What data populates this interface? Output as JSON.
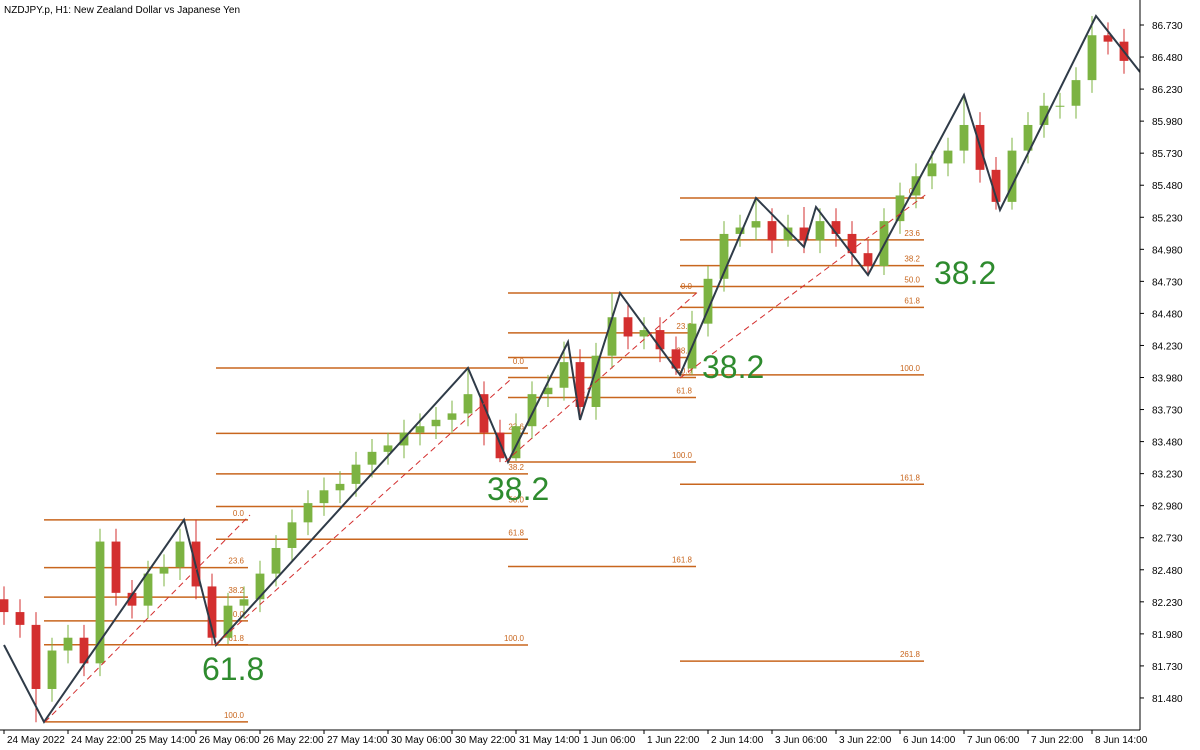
{
  "chart_data": {
    "type": "candlestick",
    "title": "NZDJPY.p, H1:  New Zealand Dollar vs Japanese Yen",
    "x": [
      0,
      4,
      8,
      12,
      16,
      20,
      24,
      28,
      32,
      36,
      40,
      44,
      48,
      52,
      56,
      60,
      64,
      68,
      72,
      76,
      80,
      84,
      88,
      92,
      96,
      100,
      104,
      108,
      112,
      116,
      120,
      124,
      128,
      132,
      136,
      140,
      144,
      148,
      152,
      156,
      160,
      164,
      168,
      172,
      176,
      180,
      184,
      188,
      192,
      196,
      200,
      204,
      208,
      212,
      216,
      220,
      224,
      228,
      232,
      236,
      240,
      244,
      248,
      252,
      256,
      260,
      264,
      268,
      272,
      276,
      280
    ],
    "open": [
      82.25,
      82.15,
      82.05,
      81.55,
      81.85,
      81.95,
      81.75,
      82.7,
      82.3,
      82.2,
      82.45,
      82.5,
      82.7,
      82.35,
      81.95,
      82.2,
      82.25,
      82.45,
      82.65,
      82.85,
      83.0,
      83.1,
      83.15,
      83.3,
      83.4,
      83.45,
      83.55,
      83.6,
      83.65,
      83.7,
      83.85,
      83.55,
      83.35,
      83.6,
      83.85,
      83.9,
      84.1,
      83.75,
      84.15,
      84.45,
      84.3,
      84.35,
      84.2,
      84.05,
      84.4,
      84.75,
      85.1,
      85.15,
      85.2,
      85.05,
      85.15,
      85.05,
      85.2,
      85.1,
      84.95,
      84.85,
      85.2,
      85.4,
      85.55,
      85.65,
      85.75,
      85.95,
      85.6,
      85.35,
      85.75,
      85.95,
      86.1,
      86.1,
      86.3,
      86.65,
      86.6
    ],
    "high": [
      82.35,
      82.25,
      82.15,
      81.95,
      82.05,
      82.05,
      82.8,
      82.8,
      82.4,
      82.55,
      82.6,
      82.8,
      82.87,
      82.45,
      82.3,
      82.35,
      82.55,
      82.75,
      82.95,
      83.1,
      83.2,
      83.25,
      83.4,
      83.5,
      83.55,
      83.65,
      83.7,
      83.75,
      83.8,
      84.05,
      83.95,
      83.65,
      83.7,
      83.95,
      84.0,
      84.26,
      84.2,
      84.25,
      84.64,
      84.55,
      84.45,
      84.45,
      84.3,
      84.5,
      84.85,
      85.2,
      85.25,
      85.38,
      85.3,
      85.25,
      85.31,
      85.3,
      85.3,
      85.2,
      85.05,
      85.3,
      85.5,
      85.65,
      85.75,
      85.85,
      86.18,
      86.05,
      85.7,
      85.85,
      86.05,
      86.2,
      86.2,
      86.4,
      86.8,
      86.75,
      86.7
    ],
    "low": [
      82.05,
      81.95,
      81.29,
      81.45,
      81.75,
      81.65,
      81.65,
      82.2,
      82.1,
      82.1,
      82.35,
      82.4,
      82.25,
      81.89,
      81.9,
      82.1,
      82.15,
      82.35,
      82.55,
      82.75,
      82.9,
      83.0,
      83.05,
      83.2,
      83.3,
      83.35,
      83.45,
      83.5,
      83.55,
      83.6,
      83.45,
      83.32,
      83.33,
      83.5,
      83.75,
      83.8,
      83.65,
      83.65,
      84.05,
      84.2,
      84.2,
      84.1,
      84.0,
      84.0,
      84.3,
      84.65,
      85.0,
      85.05,
      84.95,
      85.0,
      84.95,
      84.95,
      85.0,
      84.85,
      84.78,
      84.78,
      85.1,
      85.3,
      85.45,
      85.55,
      85.65,
      85.5,
      85.29,
      85.29,
      85.65,
      85.85,
      86.0,
      86.0,
      86.2,
      86.5,
      86.35
    ],
    "close": [
      82.15,
      82.05,
      81.55,
      81.85,
      81.95,
      81.75,
      82.7,
      82.3,
      82.2,
      82.45,
      82.5,
      82.7,
      82.35,
      81.95,
      82.2,
      82.25,
      82.45,
      82.65,
      82.85,
      83.0,
      83.1,
      83.15,
      83.3,
      83.4,
      83.45,
      83.55,
      83.6,
      83.65,
      83.7,
      83.85,
      83.55,
      83.35,
      83.6,
      83.85,
      83.9,
      84.1,
      83.75,
      84.15,
      84.45,
      84.3,
      84.35,
      84.2,
      84.05,
      84.4,
      84.75,
      85.1,
      85.15,
      85.2,
      85.05,
      85.15,
      85.05,
      85.2,
      85.1,
      84.95,
      84.85,
      85.2,
      85.4,
      85.55,
      85.65,
      85.75,
      85.95,
      85.6,
      85.35,
      85.75,
      85.95,
      86.1,
      86.1,
      86.3,
      86.65,
      86.6,
      86.45
    ],
    "up_color": "#7cb342",
    "down_color": "#d32f2f",
    "zigzag": {
      "color": "#2f3b48",
      "x": [
        0,
        10,
        45,
        53,
        116,
        126,
        141,
        144,
        154,
        169,
        188,
        200,
        203,
        216,
        240,
        249,
        273,
        284
      ],
      "values": [
        81.893,
        81.293,
        82.869,
        81.893,
        84.054,
        83.321,
        84.257,
        83.649,
        84.639,
        84.0,
        85.38,
        84.998,
        85.31,
        84.78,
        86.184,
        85.287,
        86.8,
        86.363
      ]
    },
    "fib_color": "#c8661e",
    "fibs": [
      {
        "start": 10,
        "end": 61,
        "levels": [
          {
            "label": "0.0",
            "value": 82.869
          },
          {
            "label": "23.6",
            "value": 82.497
          },
          {
            "label": "38.2",
            "value": 82.267
          },
          {
            "label": "50.0",
            "value": 82.081
          },
          {
            "label": "61.8",
            "value": 81.895
          },
          {
            "label": "100.0",
            "value": 81.293
          }
        ]
      },
      {
        "start": 53,
        "end": 131,
        "levels": [
          {
            "label": "0.0",
            "value": 84.054
          },
          {
            "label": "23.6",
            "value": 83.544
          },
          {
            "label": "38.2",
            "value": 83.228
          },
          {
            "label": "50.0",
            "value": 82.974
          },
          {
            "label": "61.8",
            "value": 82.718
          },
          {
            "label": "100.0",
            "value": 81.893
          }
        ]
      },
      {
        "start": 126,
        "end": 173,
        "levels": [
          {
            "label": "0.0",
            "value": 84.639
          },
          {
            "label": "23.6",
            "value": 84.328
          },
          {
            "label": "38.2",
            "value": 84.136
          },
          {
            "label": "50.0",
            "value": 83.98
          },
          {
            "label": "61.8",
            "value": 83.824
          },
          {
            "label": "100.0",
            "value": 83.321
          },
          {
            "label": "161.8",
            "value": 82.506
          }
        ]
      },
      {
        "start": 169,
        "end": 230,
        "levels": [
          {
            "label": "0.0",
            "value": 85.38
          },
          {
            "label": "23.6",
            "value": 85.054
          },
          {
            "label": "38.2",
            "value": 84.853
          },
          {
            "label": "50.0",
            "value": 84.69
          },
          {
            "label": "61.8",
            "value": 84.527
          },
          {
            "label": "100.0",
            "value": 84.0
          },
          {
            "label": "161.8",
            "value": 83.147
          },
          {
            "label": "261.8",
            "value": 81.767
          }
        ]
      }
    ],
    "annotations": [
      "61.8",
      "38.2",
      "38.2",
      "38.2"
    ],
    "xlim": [
      -1,
      284
    ],
    "ylim": [
      81.23,
      86.925
    ],
    "xticks": [
      {
        "value": 0,
        "label": "24 May 2022"
      },
      {
        "value": 16,
        "label": "24 May 22:00"
      },
      {
        "value": 32,
        "label": "25 May 14:00"
      },
      {
        "value": 48,
        "label": "26 May 06:00"
      },
      {
        "value": 64,
        "label": "26 May 22:00"
      },
      {
        "value": 80,
        "label": "27 May 14:00"
      },
      {
        "value": 96,
        "label": "30 May 06:00"
      },
      {
        "value": 112,
        "label": "30 May 22:00"
      },
      {
        "value": 128,
        "label": "31 May 14:00"
      },
      {
        "value": 144,
        "label": "1 Jun 06:00"
      },
      {
        "value": 160,
        "label": "1 Jun 22:00"
      },
      {
        "value": 176,
        "label": "2 Jun 14:00"
      },
      {
        "value": 192,
        "label": "3 Jun 06:00"
      },
      {
        "value": 208,
        "label": "3 Jun 22:00"
      },
      {
        "value": 224,
        "label": "6 Jun 14:00"
      },
      {
        "value": 240,
        "label": "7 Jun 06:00"
      },
      {
        "value": 256,
        "label": "7 Jun 22:00"
      },
      {
        "value": 272,
        "label": "8 Jun 14:00"
      }
    ],
    "yticks": [
      {
        "value": 81.48,
        "label": "81.480"
      },
      {
        "value": 81.73,
        "label": "81.730"
      },
      {
        "value": 81.98,
        "label": "81.980"
      },
      {
        "value": 82.23,
        "label": "82.230"
      },
      {
        "value": 82.48,
        "label": "82.480"
      },
      {
        "value": 82.73,
        "label": "82.730"
      },
      {
        "value": 82.98,
        "label": "82.980"
      },
      {
        "value": 83.23,
        "label": "83.230"
      },
      {
        "value": 83.48,
        "label": "83.480"
      },
      {
        "value": 83.73,
        "label": "83.730"
      },
      {
        "value": 83.98,
        "label": "83.980"
      },
      {
        "value": 84.23,
        "label": "84.230"
      },
      {
        "value": 84.48,
        "label": "84.480"
      },
      {
        "value": 84.73,
        "label": "84.730"
      },
      {
        "value": 84.98,
        "label": "84.980"
      },
      {
        "value": 85.23,
        "label": "85.230"
      },
      {
        "value": 85.48,
        "label": "85.480"
      },
      {
        "value": 85.73,
        "label": "85.730"
      },
      {
        "value": 85.98,
        "label": "85.980"
      },
      {
        "value": 86.23,
        "label": "86.230"
      },
      {
        "value": 86.48,
        "label": "86.480"
      },
      {
        "value": 86.73,
        "label": "86.730"
      }
    ]
  }
}
